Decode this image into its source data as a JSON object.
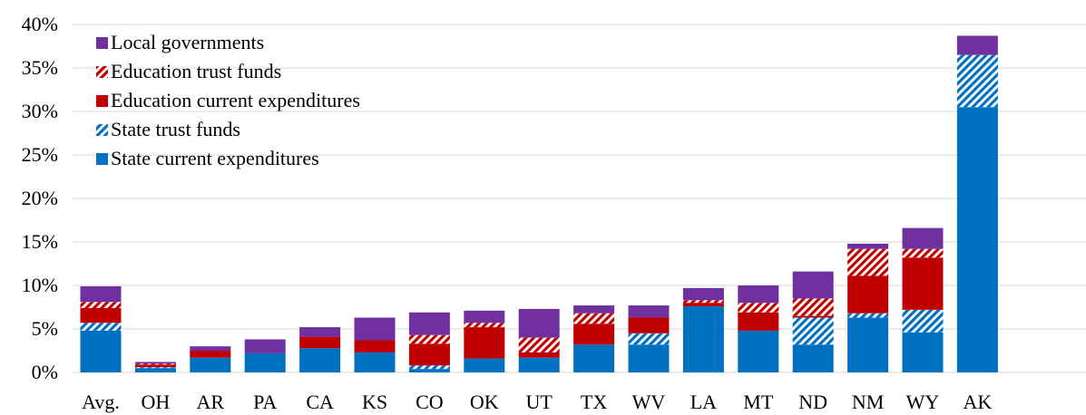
{
  "chart_data": {
    "type": "bar",
    "stacked": true,
    "categories": [
      "Avg.",
      "OH",
      "AR",
      "PA",
      "CA",
      "KS",
      "CO",
      "OK",
      "UT",
      "TX",
      "WV",
      "LA",
      "MT",
      "ND",
      "NM",
      "WY",
      "AK"
    ],
    "series": [
      {
        "name": "State current expenditures",
        "color": "#0070c0",
        "pattern": "solid",
        "values": [
          4.8,
          0.5,
          1.7,
          2.2,
          2.8,
          2.3,
          0.4,
          1.6,
          1.7,
          3.2,
          3.2,
          7.6,
          4.8,
          3.2,
          6.3,
          4.6,
          30.5
        ]
      },
      {
        "name": "State trust funds",
        "color": "#0070c0",
        "pattern": "hatched",
        "values": [
          0.9,
          0.1,
          0.0,
          0.0,
          0.0,
          0.0,
          0.4,
          0.0,
          0.0,
          0.0,
          1.3,
          0.0,
          0.0,
          3.1,
          0.5,
          2.6,
          6.0
        ]
      },
      {
        "name": "Education current expenditures",
        "color": "#c00000",
        "pattern": "solid",
        "values": [
          1.7,
          0.3,
          0.8,
          0.0,
          1.3,
          1.4,
          2.5,
          3.6,
          0.6,
          2.4,
          1.8,
          0.4,
          2.1,
          0.2,
          4.3,
          6.0,
          0.0
        ]
      },
      {
        "name": "Education trust funds",
        "color": "#c00000",
        "pattern": "hatched",
        "values": [
          0.7,
          0.1,
          0.0,
          0.0,
          0.0,
          0.0,
          1.0,
          0.5,
          1.7,
          1.2,
          0.0,
          0.3,
          1.1,
          2.0,
          3.1,
          1.0,
          0.0
        ]
      },
      {
        "name": "Local governments",
        "color": "#7030a0",
        "pattern": "solid",
        "values": [
          1.8,
          0.2,
          0.5,
          1.6,
          1.1,
          2.6,
          2.6,
          1.4,
          3.3,
          0.9,
          1.4,
          1.4,
          2.0,
          3.1,
          0.6,
          2.4,
          2.2
        ]
      }
    ],
    "y_ticks": [
      "0%",
      "5%",
      "10%",
      "15%",
      "20%",
      "25%",
      "30%",
      "35%",
      "40%"
    ],
    "ylim": [
      0,
      40
    ],
    "y_unit": "%",
    "title": "",
    "xlabel": "",
    "ylabel": "",
    "grid": true,
    "legend_position": "top-left"
  },
  "legend_order": [
    "Local governments",
    "Education trust funds",
    "Education current expenditures",
    "State trust funds",
    "State current expenditures"
  ]
}
